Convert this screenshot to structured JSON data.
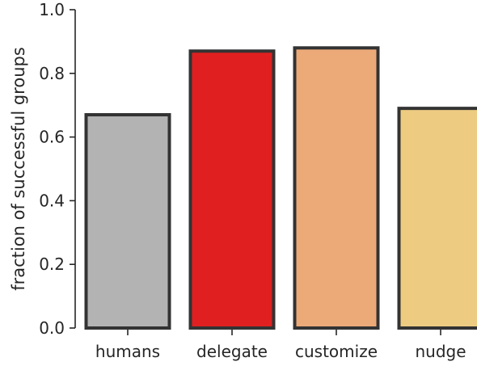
{
  "chart_data": {
    "type": "bar",
    "categories": [
      "humans",
      "delegate",
      "customize",
      "nudge"
    ],
    "values": [
      0.67,
      0.87,
      0.88,
      0.69
    ],
    "colors": [
      "#b3b3b3",
      "#e02020",
      "#ecaa78",
      "#edcc82"
    ],
    "edge_color": "#333333",
    "ylabel": "fraction of successful groups",
    "xlabel": "",
    "ylim": [
      0,
      1.0
    ],
    "yticks": [
      "0.0",
      "0.2",
      "0.4",
      "0.6",
      "0.8",
      "1.0"
    ],
    "grid": false,
    "legend": "none"
  }
}
